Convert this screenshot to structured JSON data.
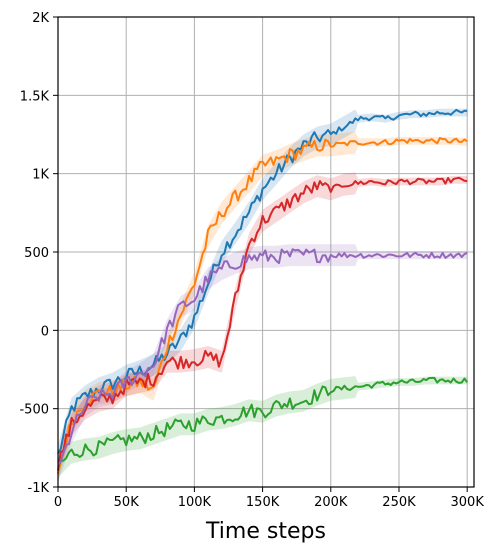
{
  "chart_data": {
    "type": "line",
    "title": "",
    "xlabel": "Time steps",
    "ylabel": "",
    "xlim": [
      0,
      305000
    ],
    "ylim": [
      -1000,
      2000
    ],
    "grid": true,
    "legend": "none",
    "xticks": [
      {
        "value": 0,
        "label": "0"
      },
      {
        "value": 50000,
        "label": "50K"
      },
      {
        "value": 100000,
        "label": "100K"
      },
      {
        "value": 150000,
        "label": "150K"
      },
      {
        "value": 200000,
        "label": "200K"
      },
      {
        "value": 250000,
        "label": "250K"
      },
      {
        "value": 300000,
        "label": "300K"
      }
    ],
    "yticks": [
      {
        "value": -1000,
        "label": "-1K"
      },
      {
        "value": -500,
        "label": "-500"
      },
      {
        "value": 0,
        "label": "0"
      },
      {
        "value": 500,
        "label": "500"
      },
      {
        "value": 1000,
        "label": "1K"
      },
      {
        "value": 1500,
        "label": "1.5K"
      },
      {
        "value": 2000,
        "label": "2K"
      }
    ],
    "x": [
      0,
      10000,
      20000,
      30000,
      40000,
      50000,
      60000,
      70000,
      80000,
      90000,
      100000,
      110000,
      120000,
      130000,
      140000,
      150000,
      160000,
      170000,
      180000,
      190000,
      200000,
      210000,
      220000,
      230000,
      240000,
      250000,
      260000,
      270000,
      280000,
      290000,
      300000
    ],
    "series": [
      {
        "color": "#1f77b4",
        "values": [
          -800,
          -500,
          -420,
          -370,
          -340,
          -290,
          -260,
          -220,
          -150,
          -60,
          80,
          300,
          500,
          620,
          750,
          900,
          1000,
          1100,
          1180,
          1230,
          1250,
          1300,
          1350,
          1360,
          1350,
          1370,
          1380,
          1380,
          1390,
          1390,
          1390
        ]
      },
      {
        "color": "#ff7f0e",
        "values": [
          -900,
          -580,
          -450,
          -400,
          -390,
          -350,
          -330,
          -380,
          -100,
          100,
          300,
          600,
          750,
          850,
          950,
          1050,
          1080,
          1120,
          1150,
          1180,
          1180,
          1190,
          1200,
          1200,
          1200,
          1210,
          1210,
          1210,
          1210,
          1210,
          1200
        ]
      },
      {
        "color": "#2ca02c",
        "values": [
          -870,
          -780,
          -760,
          -750,
          -720,
          -700,
          -690,
          -660,
          -630,
          -600,
          -600,
          -570,
          -560,
          -540,
          -510,
          -520,
          -480,
          -460,
          -450,
          -410,
          -380,
          -370,
          -360,
          -350,
          -340,
          -330,
          -330,
          -320,
          -320,
          -320,
          -320
        ]
      },
      {
        "color": "#d62728",
        "values": [
          -850,
          -600,
          -500,
          -450,
          -430,
          -350,
          -330,
          -310,
          -200,
          -200,
          -190,
          -170,
          -200,
          200,
          550,
          700,
          760,
          820,
          880,
          920,
          900,
          930,
          940,
          950,
          940,
          950,
          950,
          950,
          950,
          960,
          960
        ]
      },
      {
        "color": "#9467bd",
        "values": [
          -900,
          -650,
          -480,
          -420,
          -400,
          -330,
          -280,
          -220,
          0,
          150,
          200,
          330,
          390,
          430,
          460,
          470,
          470,
          480,
          480,
          480,
          480,
          480,
          480,
          480,
          480,
          480,
          480,
          480,
          480,
          480,
          480
        ]
      }
    ]
  }
}
